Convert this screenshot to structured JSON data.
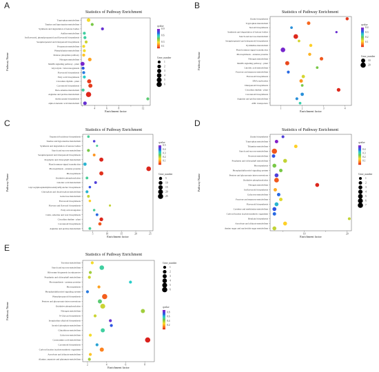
{
  "chart_data": [
    {
      "panel": "A",
      "type": "scatter",
      "title": "Statistics of Pathway Enrichment",
      "xlabel": "Enrichment factor",
      "ylabel": "Pathway Name",
      "xlim": [
        1.8,
        13.2
      ],
      "xticks": [
        2,
        4,
        6,
        8,
        10,
        12
      ],
      "xtick_labels": [
        "",
        "4",
        "6",
        "8",
        "",
        "12"
      ],
      "color_legend": {
        "title": "qvalue",
        "min": 0,
        "max": 0.9,
        "ticks": [
          0.9,
          0.6,
          0.3,
          0.1
        ]
      },
      "size_legend": {
        "title": "Gene_number",
        "ticks": [
          1,
          2,
          3,
          4,
          5,
          6
        ]
      },
      "points": [
        {
          "name": "Tryptophan metabolism",
          "x": 3.0,
          "size": 2,
          "q": 0.3
        },
        {
          "name": "Taurine and hypotaurine metabolism",
          "x": 3.6,
          "size": 1,
          "q": 0.45
        },
        {
          "name": "Synthesis and degradation of ketone bodies",
          "x": 5.3,
          "size": 1,
          "q": 0.85
        },
        {
          "name": "Aniline metabolism",
          "x": 2.3,
          "size": 1,
          "q": 0.55
        },
        {
          "name": "Isoflavonoid, phenylpropanoid and flavonoid biosynthesis",
          "x": 2.4,
          "size": 1,
          "q": 0.55
        },
        {
          "name": "Sesquiterpenoid and triterpenoid biosynthesis",
          "x": 2.6,
          "size": 1,
          "q": 0.35
        },
        {
          "name": "Propanoate metabolism",
          "x": 2.2,
          "size": 1,
          "q": 0.3
        },
        {
          "name": "Phenylalanine metabolism",
          "x": 2.3,
          "size": 1,
          "q": 0.3
        },
        {
          "name": "Pentose phosphate pathway",
          "x": 2.2,
          "size": 1,
          "q": 0.25
        },
        {
          "name": "Nitrogen metabolism",
          "x": 3.2,
          "size": 2,
          "q": 0.2
        },
        {
          "name": "MAPK signaling pathway - plant",
          "x": 2.0,
          "size": 3,
          "q": 0.88
        },
        {
          "name": "Glycolysis / Gluconeogenesis",
          "x": 2.1,
          "size": 1,
          "q": 0.75
        },
        {
          "name": "Flavonoid biosynthesis",
          "x": 2.2,
          "size": 1,
          "q": 0.7
        },
        {
          "name": "Fatty acid biosynthesis",
          "x": 2.3,
          "size": 1,
          "q": 0.6
        },
        {
          "name": "Circadian rhythm - plant",
          "x": 3.1,
          "size": 3,
          "q": 0.05
        },
        {
          "name": "Carotenoid biosynthesis",
          "x": 3.3,
          "size": 3,
          "q": 0.05
        },
        {
          "name": "Beta-Alanine metabolism",
          "x": 2.1,
          "size": 1,
          "q": 0.55
        },
        {
          "name": "Arginine and proline metabolism",
          "x": 3.0,
          "size": 6,
          "q": 0.02
        },
        {
          "name": "Anthocyanin biosynthesis",
          "x": 12.8,
          "size": 1,
          "q": 0.5
        },
        {
          "name": "alpha-Linolenic acid metabolism",
          "x": 2.4,
          "size": 2,
          "q": 0.85
        }
      ]
    },
    {
      "panel": "B",
      "type": "scatter",
      "title": "Statistics of Pathway Enrichment",
      "xlabel": "Enrichment factor",
      "ylabel": "Pathway Name",
      "xlim": [
        0.5,
        4.3
      ],
      "xticks": [
        1,
        2,
        3,
        4
      ],
      "xtick_labels": [
        "1",
        "2",
        "3",
        "4"
      ],
      "color_legend": {
        "title": "qvalue",
        "min": 0,
        "max": 0.4,
        "ticks": [
          0.4,
          0.3,
          0.2,
          0.1
        ]
      },
      "size_legend": {
        "title": "Gene_number",
        "ticks": [
          10,
          20
        ]
      },
      "points": [
        {
          "name": "Zeatin biosynthesis",
          "x": 4.1,
          "size": 4,
          "q": 0.02
        },
        {
          "name": "Tryptophan metabolism",
          "x": 2.3,
          "size": 6,
          "q": 0.05
        },
        {
          "name": "Steroid biosynthesis",
          "x": 1.5,
          "size": 2,
          "q": 0.3
        },
        {
          "name": "Synthesis and degradation of ketone bodies",
          "x": 3.6,
          "size": 1,
          "q": 0.38
        },
        {
          "name": "Starch and sucrose metabolism",
          "x": 1.7,
          "size": 14,
          "q": 0.01
        },
        {
          "name": "Sesquiterpenoid and triterpenoid biosynthesis",
          "x": 1.85,
          "size": 2,
          "q": 0.15
        },
        {
          "name": "Pyrimidine metabolism",
          "x": 2.4,
          "size": 4,
          "q": 0.12
        },
        {
          "name": "Plant hormone signal transduction",
          "x": 1.1,
          "size": 14,
          "q": 0.39
        },
        {
          "name": "Photosynthesis - antenna proteins",
          "x": 2.35,
          "size": 4,
          "q": 0.1
        },
        {
          "name": "Nitrogen metabolism",
          "x": 2.9,
          "size": 6,
          "q": 0.04
        },
        {
          "name": "MAPK signaling pathway - plant",
          "x": 1.3,
          "size": 10,
          "q": 0.03
        },
        {
          "name": "Linoleic acid metabolism",
          "x": 2.7,
          "size": 2,
          "q": 0.2
        },
        {
          "name": "Fructose and mannose metabolism",
          "x": 1.35,
          "size": 3,
          "q": 0.32
        },
        {
          "name": "Flavonoid biosynthesis",
          "x": 2.05,
          "size": 5,
          "q": 0.15
        },
        {
          "name": "DNA replication",
          "x": 1.95,
          "size": 6,
          "q": 0.08
        },
        {
          "name": "Diterpenoid biosynthesis",
          "x": 2.0,
          "size": 2,
          "q": 0.2
        },
        {
          "name": "Circadian rhythm - plant",
          "x": 3.7,
          "size": 7,
          "q": 0.01
        },
        {
          "name": "Carotenoid biosynthesis",
          "x": 2.0,
          "size": 5,
          "q": 0.3
        },
        {
          "name": "Arginine and proline metabolism",
          "x": 1.75,
          "size": 3,
          "q": 0.3
        },
        {
          "name": "ABC transporters",
          "x": 1.9,
          "size": 2,
          "q": 0.25
        }
      ]
    },
    {
      "panel": "C",
      "type": "scatter",
      "title": "Statistics of Pathway Enrichment",
      "xlabel": "Enrichment factor",
      "ylabel": "Pathway Name",
      "xlim": [
        1.5,
        26
      ],
      "xticks": [
        5,
        10,
        15,
        20,
        25
      ],
      "xtick_labels": [
        "5",
        "10",
        "15",
        "20",
        "25"
      ],
      "color_legend": {
        "title": "qvalue",
        "min": 0,
        "max": 0.5,
        "ticks": [
          0.5,
          0.4,
          0.3,
          0.2,
          0.1
        ]
      },
      "size_legend": {
        "title": "Gene_number",
        "ticks": [
          5,
          10,
          15,
          20,
          25
        ]
      },
      "points": [
        {
          "name": "Terpenoid backbone biosynthesis",
          "x": 3.5,
          "size": 2,
          "q": 0.3
        },
        {
          "name": "Taurine and hypotaurine metabolism",
          "x": 5.5,
          "size": 2,
          "q": 0.45
        },
        {
          "name": "Synthesis and degradation of ketone bodies",
          "x": 6.5,
          "size": 1,
          "q": 0.3
        },
        {
          "name": "Starch and sucrose metabolism",
          "x": 3.5,
          "size": 4,
          "q": 0.25
        },
        {
          "name": "Sesquiterpenoid and triterpenoid biosynthesis",
          "x": 5.5,
          "size": 3,
          "q": 0.1
        },
        {
          "name": "Porphyrin and chlorophyll metabolism",
          "x": 8.0,
          "size": 12,
          "q": 0.01
        },
        {
          "name": "Plant hormone signal transduction",
          "x": 2.3,
          "size": 6,
          "q": 0.35
        },
        {
          "name": "Photosynthesis - antenna proteins",
          "x": 24.5,
          "size": 18,
          "q": 0.01
        },
        {
          "name": "Photosynthesis",
          "x": 8.0,
          "size": 12,
          "q": 0.02
        },
        {
          "name": "Oxidative phosphorylation",
          "x": 3.0,
          "size": 3,
          "q": 0.3
        },
        {
          "name": "Linoleic acid metabolism",
          "x": 6.0,
          "size": 3,
          "q": 0.45
        },
        {
          "name": "Glycosylphosphatidylinositol(GPI)-anchor biosynthesis",
          "x": 4.0,
          "size": 2,
          "q": 0.42
        },
        {
          "name": "Glyoxylate and dicarboxylate metabolism",
          "x": 3.0,
          "size": 4,
          "q": 0.35
        },
        {
          "name": "Galactose metabolism",
          "x": 3.5,
          "size": 3,
          "q": 0.2
        },
        {
          "name": "Flavonoid biosynthesis",
          "x": 4.0,
          "size": 2,
          "q": 0.15
        },
        {
          "name": "Flavone and flavonol biosynthesis",
          "x": 11.0,
          "size": 1,
          "q": 0.2
        },
        {
          "name": "Fatty acid elongation",
          "x": 5.5,
          "size": 2,
          "q": 0.3
        },
        {
          "name": "Cutin, suberine and wax biosynthesis",
          "x": 6.5,
          "size": 3,
          "q": 0.4
        },
        {
          "name": "Circadian rhythm - plant",
          "x": 8.0,
          "size": 9,
          "q": 0.01
        },
        {
          "name": "Carotenoid biosynthesis",
          "x": 7.5,
          "size": 6,
          "q": 0.05
        },
        {
          "name": "Arginine and proline metabolism",
          "x": 4.0,
          "size": 3,
          "q": 0.3
        }
      ]
    },
    {
      "panel": "D",
      "type": "scatter",
      "title": "Statistics of Pathway Enrichment",
      "xlabel": "Enrichment factor",
      "ylabel": "Pathway Name",
      "xlim": [
        2,
        21
      ],
      "xticks": [
        5,
        10,
        15,
        20
      ],
      "xtick_labels": [
        "",
        "10",
        "",
        "20"
      ],
      "color_legend": {
        "title": "qvalue",
        "min": 0,
        "max": 0.5,
        "ticks": [
          0.4,
          0.3,
          0.2,
          0.1
        ]
      },
      "size_legend": {
        "title": "Gene_number",
        "ticks": [
          1,
          2,
          3,
          4,
          5,
          6,
          7
        ]
      },
      "points": [
        {
          "name": "Zeatin biosynthesis",
          "x": 5.0,
          "size": 1,
          "q": 0.45
        },
        {
          "name": "Tryptophan metabolism",
          "x": 3.5,
          "size": 2,
          "q": 0.5
        },
        {
          "name": "Thiamine metabolism",
          "x": 8.0,
          "size": 2,
          "q": 0.15
        },
        {
          "name": "Starch and sucrose metabolism",
          "x": 3.0,
          "size": 7,
          "q": 0.05
        },
        {
          "name": "Pyruvate metabolism",
          "x": 2.8,
          "size": 2,
          "q": 0.42
        },
        {
          "name": "Porphyrin and chlorophyll metabolism",
          "x": 5.5,
          "size": 3,
          "q": 0.2
        },
        {
          "name": "Photosynthesis",
          "x": 3.0,
          "size": 3,
          "q": 0.25
        },
        {
          "name": "Phosphatidylinositol signaling system",
          "x": 4.5,
          "size": 2,
          "q": 0.25
        },
        {
          "name": "Pentose and glucuronate interconversions",
          "x": 3.5,
          "size": 3,
          "q": 0.45
        },
        {
          "name": "Oxidative phosphorylation",
          "x": 3.5,
          "size": 5,
          "q": 0.05
        },
        {
          "name": "Nitrogen metabolism",
          "x": 13.0,
          "size": 3,
          "q": 0.01
        },
        {
          "name": "Isoflavonoid biosynthesis",
          "x": 3.2,
          "size": 2,
          "q": 0.12
        },
        {
          "name": "Galactose metabolism",
          "x": 4.0,
          "size": 2,
          "q": 0.4
        },
        {
          "name": "Fructose and mannose metabolism",
          "x": 4.5,
          "size": 2,
          "q": 0.18
        },
        {
          "name": "Flavonoid biosynthesis",
          "x": 3.5,
          "size": 3,
          "q": 0.35
        },
        {
          "name": "Cysteine and methionine metabolism",
          "x": 3.0,
          "size": 3,
          "q": 0.42
        },
        {
          "name": "Carbon fixation in photosynthetic organisms",
          "x": 3.0,
          "size": 2,
          "q": 0.4
        },
        {
          "name": "Betalain biosynthesis",
          "x": 20.5,
          "size": 1,
          "q": 0.2
        },
        {
          "name": "Ascorbate and aldarate metabolism",
          "x": 5.5,
          "size": 3,
          "q": 0.15
        },
        {
          "name": "Amino sugar and nucleotide sugar metabolism",
          "x": 3.0,
          "size": 3,
          "q": 0.2
        }
      ]
    },
    {
      "panel": "E",
      "type": "scatter",
      "title": "Statistics of Pathway Enrichment",
      "xlabel": "Enrichment factor",
      "ylabel": "Pathway Name",
      "xlim": [
        1.5,
        9
      ],
      "xticks": [
        2,
        4,
        6,
        8
      ],
      "xtick_labels": [
        "2",
        "4",
        "6",
        "8"
      ],
      "color_legend": {
        "title": "qvalue",
        "min": 0,
        "max": 0.9,
        "ticks": [
          0.8,
          0.6,
          0.4,
          0.2
        ]
      },
      "size_legend": {
        "title": "Gene_number",
        "ticks": [
          1,
          2,
          3,
          4,
          5,
          6
        ]
      },
      "points": [
        {
          "name": "Tyrosine metabolism",
          "x": 2.5,
          "size": 1,
          "q": 0.3
        },
        {
          "name": "Starch and sucrose metabolism",
          "x": 3.5,
          "size": 4,
          "q": 0.55
        },
        {
          "name": "Ribosome biogenesis in eukaryotes",
          "x": 2.3,
          "size": 1,
          "q": 0.4
        },
        {
          "name": "Porphyrin and chlorophyll metabolism",
          "x": 2.2,
          "size": 1,
          "q": 0.35
        },
        {
          "name": "Photosynthesis - antenna proteins",
          "x": 6.5,
          "size": 1,
          "q": 0.6
        },
        {
          "name": "Photosynthesis",
          "x": 3.2,
          "size": 1,
          "q": 0.2
        },
        {
          "name": "Phosphatidylinositol signaling system",
          "x": 2.0,
          "size": 1,
          "q": 0.7
        },
        {
          "name": "Phenylpropanoid biosynthesis",
          "x": 3.8,
          "size": 6,
          "q": 0.1
        },
        {
          "name": "Pentose and glucuronate interconversions",
          "x": 3.3,
          "size": 3,
          "q": 0.5
        },
        {
          "name": "Oxidative phosphorylation",
          "x": 3.6,
          "size": 5,
          "q": 0.35
        },
        {
          "name": "Nitrogen metabolism",
          "x": 7.8,
          "size": 3,
          "q": 0.4
        },
        {
          "name": "N-Glycan biosynthesis",
          "x": 2.8,
          "size": 1,
          "q": 0.35
        },
        {
          "name": "Isoquinoline alkaloid biosynthesis",
          "x": 4.4,
          "size": 1,
          "q": 0.85
        },
        {
          "name": "Inositol phosphate metabolism",
          "x": 4.5,
          "size": 1,
          "q": 0.75
        },
        {
          "name": "Glutathione metabolism",
          "x": 3.6,
          "size": 3,
          "q": 0.55
        },
        {
          "name": "Galactose metabolism",
          "x": 2.3,
          "size": 1,
          "q": 0.3
        },
        {
          "name": "Cyanoamino acid metabolism",
          "x": 8.3,
          "size": 6,
          "q": 0.01
        },
        {
          "name": "Carotenoid biosynthesis",
          "x": 3.0,
          "size": 1,
          "q": 0.65
        },
        {
          "name": "Carbon fixation in photosynthetic organisms",
          "x": 3.5,
          "size": 3,
          "q": 0.15
        },
        {
          "name": "Ascorbate and aldarate metabolism",
          "x": 2.3,
          "size": 1,
          "q": 0.25
        },
        {
          "name": "Alanine, aspartate and glutamate metabolism",
          "x": 2.2,
          "size": 1,
          "q": 0.4
        }
      ]
    }
  ]
}
